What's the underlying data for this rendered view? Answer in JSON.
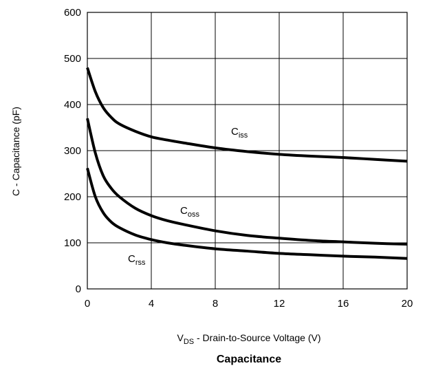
{
  "chart_data": {
    "type": "line",
    "title": "Capacitance",
    "xlabel": {
      "main": "V",
      "sub": "DS",
      "rest": " - Drain-to-Source Voltage (V)"
    },
    "ylabel": "C - Capacitance (pF)",
    "xlim": [
      0,
      20
    ],
    "ylim": [
      0,
      600
    ],
    "xticks": [
      "0",
      "4",
      "8",
      "12",
      "16",
      "20"
    ],
    "yticks": [
      "0",
      "100",
      "200",
      "300",
      "400",
      "500",
      "600"
    ],
    "grid": true,
    "series": [
      {
        "name": {
          "main": "C",
          "sub": "iss"
        },
        "x": [
          0,
          0.5,
          1,
          1.5,
          2,
          3,
          4,
          5,
          6,
          8,
          10,
          12,
          14,
          16,
          18,
          20
        ],
        "y": [
          480,
          428,
          393,
          372,
          358,
          342,
          330,
          323,
          317,
          306,
          298,
          292,
          288,
          285,
          281,
          277
        ]
      },
      {
        "name": {
          "main": "C",
          "sub": "oss"
        },
        "x": [
          0,
          0.5,
          1,
          1.5,
          2,
          3,
          4,
          5,
          6,
          8,
          10,
          12,
          14,
          16,
          18,
          20
        ],
        "y": [
          370,
          295,
          245,
          218,
          200,
          175,
          159,
          148,
          140,
          126,
          116,
          110,
          105,
          102,
          99,
          97
        ]
      },
      {
        "name": {
          "main": "C",
          "sub": "rss"
        },
        "x": [
          0,
          0.5,
          1,
          1.5,
          2,
          3,
          4,
          5,
          6,
          8,
          10,
          12,
          14,
          16,
          18,
          20
        ],
        "y": [
          262,
          200,
          165,
          145,
          133,
          117,
          107,
          100,
          95,
          87,
          82,
          77,
          74,
          71,
          69,
          66
        ]
      }
    ]
  }
}
